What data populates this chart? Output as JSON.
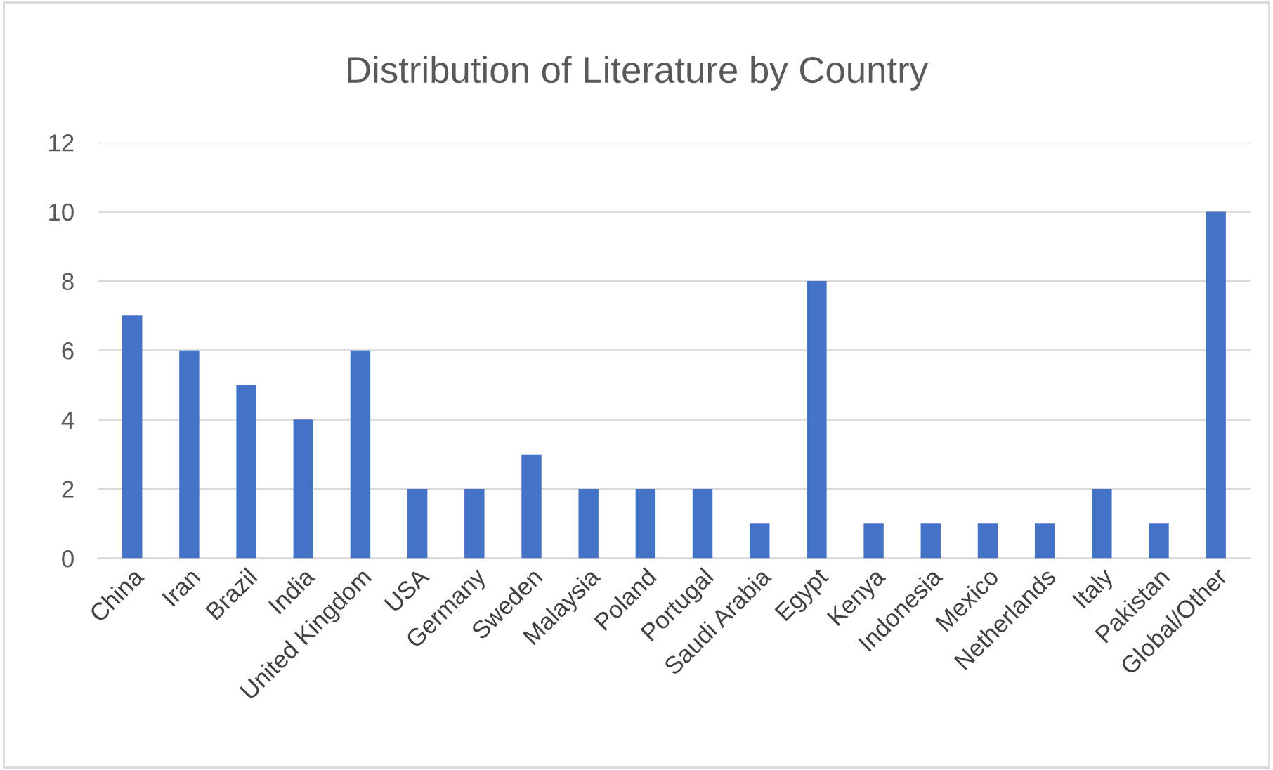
{
  "chart_data": {
    "type": "bar",
    "title": "Distribution of Literature by Country",
    "categories": [
      "China",
      "Iran",
      "Brazil",
      "India",
      "United Kingdom",
      "USA",
      "Germany",
      "Sweden",
      "Malaysia",
      "Poland",
      "Portugal",
      "Saudi Arabia",
      "Egypt",
      "Kenya",
      "Indonesia",
      "Mexico",
      "Netherlands",
      "Italy",
      "Pakistan",
      "Global/Other"
    ],
    "values": [
      7,
      6,
      5,
      4,
      6,
      2,
      2,
      3,
      2,
      2,
      2,
      1,
      8,
      1,
      1,
      1,
      1,
      2,
      1,
      10
    ],
    "color": "#4472c4",
    "ylim": [
      0,
      12
    ],
    "yticks": [
      0,
      2,
      4,
      6,
      8,
      10,
      12
    ],
    "grid": "y",
    "legend": false
  }
}
